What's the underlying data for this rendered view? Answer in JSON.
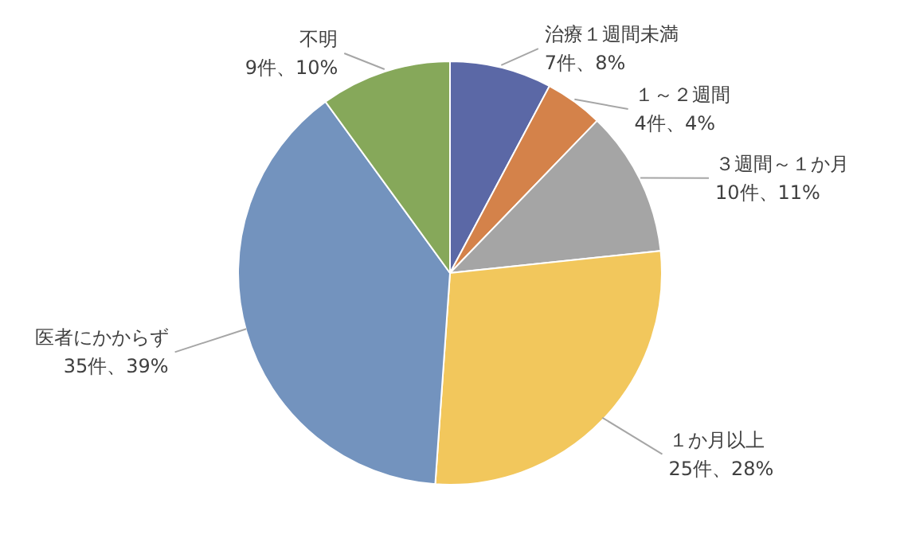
{
  "chart_data": {
    "type": "pie",
    "categories": [
      "治療１週間未満",
      "１～２週間",
      "３週間～１か月",
      "１か月以上",
      "医者にかからず",
      "不明"
    ],
    "values": [
      7,
      4,
      10,
      25,
      35,
      9
    ],
    "value_labels": [
      "7件、8%",
      "4件、4%",
      "10件、11%",
      "25件、28%",
      "35件、39%",
      "9件、10%"
    ],
    "colors": [
      "#5b68a6",
      "#d4824a",
      "#a5a5a5",
      "#f2c75c",
      "#7393be",
      "#86a85a"
    ]
  }
}
